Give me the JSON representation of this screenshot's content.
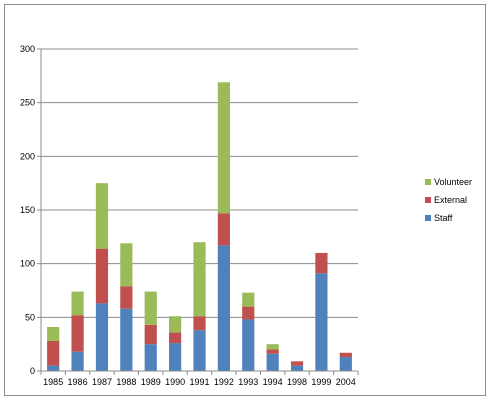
{
  "chart_data": {
    "type": "bar",
    "stacked": true,
    "title": "",
    "xlabel": "",
    "ylabel": "",
    "ylim": [
      0,
      300
    ],
    "yticks": [
      0,
      50,
      100,
      150,
      200,
      250,
      300
    ],
    "grid": true,
    "legend_position": "right",
    "categories": [
      "1985",
      "1986",
      "1987",
      "1988",
      "1989",
      "1990",
      "1991",
      "1992",
      "1993",
      "1994",
      "1998",
      "1999",
      "2004"
    ],
    "series": [
      {
        "name": "Staff",
        "color": "#4f81bd",
        "values": [
          5,
          18,
          63,
          58,
          25,
          26,
          38,
          117,
          48,
          16,
          5,
          91,
          13
        ]
      },
      {
        "name": "External",
        "color": "#c0504d",
        "values": [
          23,
          34,
          51,
          21,
          18,
          10,
          13,
          30,
          12,
          4,
          4,
          19,
          4
        ]
      },
      {
        "name": "Volunteer",
        "color": "#9bbb59",
        "values": [
          13,
          22,
          61,
          40,
          31,
          15,
          69,
          122,
          13,
          5,
          0,
          0,
          0
        ]
      }
    ]
  }
}
